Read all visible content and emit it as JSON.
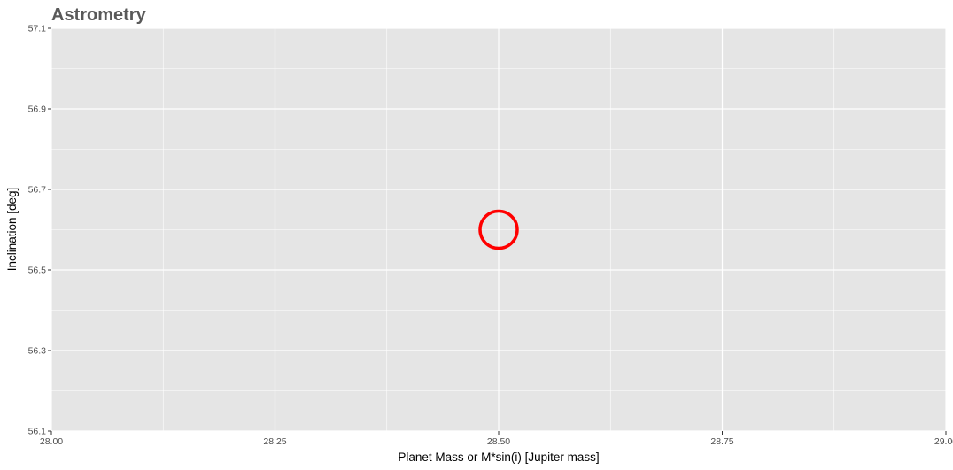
{
  "chart_data": {
    "type": "scatter",
    "title": "Astrometry",
    "xlabel": "Planet Mass or M*sin(i) [Jupiter mass]",
    "ylabel": "Inclination [deg]",
    "xlim": [
      28.0,
      29.0
    ],
    "ylim": [
      56.1,
      57.1
    ],
    "x_ticks": [
      28.0,
      28.25,
      28.5,
      28.75,
      29.0
    ],
    "x_tick_labels": [
      "28.00",
      "28.25",
      "28.50",
      "28.75",
      "29.00"
    ],
    "y_ticks": [
      56.1,
      56.3,
      56.5,
      56.7,
      56.9,
      57.1
    ],
    "y_tick_labels": [
      "56.1",
      "56.3",
      "56.5",
      "56.7",
      "56.9",
      "57.1"
    ],
    "grid": true,
    "points": [
      {
        "x": 28.5,
        "y": 56.6
      }
    ],
    "marker": "open-circle",
    "colors": {
      "point": "#ff0000",
      "panel_background": "#e5e5e5",
      "grid": "#ffffff"
    }
  }
}
